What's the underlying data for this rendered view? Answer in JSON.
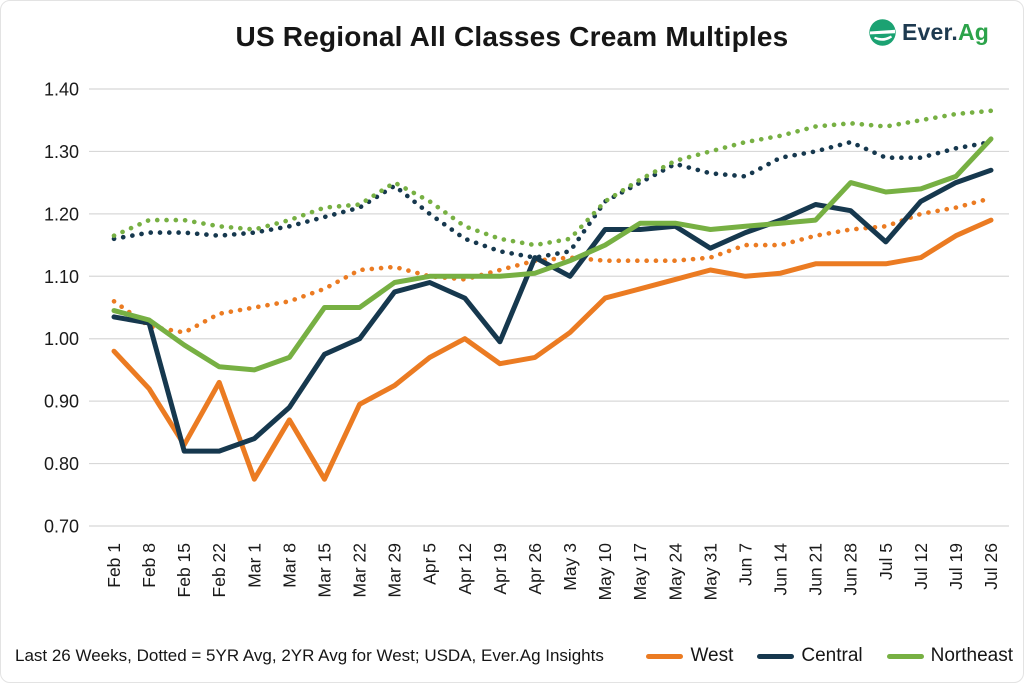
{
  "header": {
    "title": "US Regional All Classes Cream Multiples",
    "logo": {
      "prefix": "Ever.",
      "suffix": "Ag",
      "icon_color": "#1ba272",
      "prefix_color": "#1e3a50",
      "suffix_color": "#2ca34a"
    }
  },
  "footer": {
    "note": "Last 26 Weeks, Dotted = 5YR Avg, 2YR Avg for West; USDA, Ever.Ag Insights"
  },
  "legend": [
    {
      "label": "West",
      "color": "#EB7B22"
    },
    {
      "label": "Central",
      "color": "#16384E"
    },
    {
      "label": "Northeast",
      "color": "#77B043"
    }
  ],
  "colors": {
    "west": "#EB7B22",
    "central": "#16384E",
    "northeast": "#77B043",
    "gridline": "#D8D8D8",
    "text": "#1A1A1A"
  },
  "chart_data": {
    "type": "line",
    "title": "US Regional All Classes Cream Multiples",
    "xlabel": "",
    "ylabel": "",
    "ylim": [
      0.7,
      1.4
    ],
    "y_ticks": [
      0.7,
      0.8,
      0.9,
      1.0,
      1.1,
      1.2,
      1.3,
      1.4
    ],
    "grid": "horizontal",
    "legend_position": "bottom-right",
    "categories": [
      "Feb 1",
      "Feb 8",
      "Feb 15",
      "Feb 22",
      "Mar 1",
      "Mar 8",
      "Mar 15",
      "Mar 22",
      "Mar 29",
      "Apr 5",
      "Apr 12",
      "Apr 19",
      "Apr 26",
      "May 3",
      "May 10",
      "May 17",
      "May 24",
      "May 31",
      "Jun 7",
      "Jun 14",
      "Jun 21",
      "Jun 28",
      "Jul 5",
      "Jul 12",
      "Jul 19",
      "Jul 26"
    ],
    "series": [
      {
        "name": "West",
        "style": "solid",
        "color": "#EB7B22",
        "values": [
          0.98,
          0.92,
          0.83,
          0.93,
          0.775,
          0.87,
          0.775,
          0.895,
          0.925,
          0.97,
          1.0,
          0.96,
          0.97,
          1.01,
          1.065,
          1.08,
          1.095,
          1.11,
          1.1,
          1.105,
          1.12,
          1.12,
          1.12,
          1.13,
          1.165,
          1.19
        ]
      },
      {
        "name": "Central",
        "style": "solid",
        "color": "#16384E",
        "values": [
          1.035,
          1.025,
          0.82,
          0.82,
          0.84,
          0.89,
          0.975,
          1.0,
          1.075,
          1.09,
          1.065,
          0.995,
          1.13,
          1.1,
          1.175,
          1.175,
          1.18,
          1.145,
          1.17,
          1.19,
          1.215,
          1.205,
          1.155,
          1.22,
          1.25,
          1.27
        ]
      },
      {
        "name": "Northeast",
        "style": "solid",
        "color": "#77B043",
        "values": [
          1.045,
          1.03,
          0.99,
          0.955,
          0.95,
          0.97,
          1.05,
          1.05,
          1.09,
          1.1,
          1.1,
          1.1,
          1.105,
          1.125,
          1.15,
          1.185,
          1.185,
          1.175,
          1.18,
          1.185,
          1.19,
          1.25,
          1.235,
          1.24,
          1.26,
          1.32
        ]
      },
      {
        "name": "West 2YR Avg",
        "style": "dotted",
        "color": "#EB7B22",
        "values": [
          1.06,
          1.02,
          1.01,
          1.04,
          1.05,
          1.06,
          1.08,
          1.11,
          1.115,
          1.1,
          1.095,
          1.11,
          1.125,
          1.13,
          1.125,
          1.125,
          1.125,
          1.13,
          1.15,
          1.15,
          1.165,
          1.175,
          1.18,
          1.2,
          1.21,
          1.225
        ]
      },
      {
        "name": "Central 5YR Avg",
        "style": "dotted",
        "color": "#16384E",
        "values": [
          1.16,
          1.17,
          1.17,
          1.165,
          1.17,
          1.18,
          1.195,
          1.21,
          1.245,
          1.2,
          1.16,
          1.14,
          1.13,
          1.14,
          1.22,
          1.25,
          1.28,
          1.265,
          1.26,
          1.29,
          1.3,
          1.315,
          1.29,
          1.29,
          1.305,
          1.315
        ]
      },
      {
        "name": "Northeast 5YR Avg",
        "style": "dotted",
        "color": "#77B043",
        "values": [
          1.165,
          1.19,
          1.19,
          1.18,
          1.175,
          1.19,
          1.21,
          1.215,
          1.25,
          1.22,
          1.18,
          1.16,
          1.15,
          1.16,
          1.22,
          1.255,
          1.285,
          1.3,
          1.315,
          1.325,
          1.34,
          1.345,
          1.34,
          1.35,
          1.36,
          1.365
        ]
      }
    ]
  }
}
